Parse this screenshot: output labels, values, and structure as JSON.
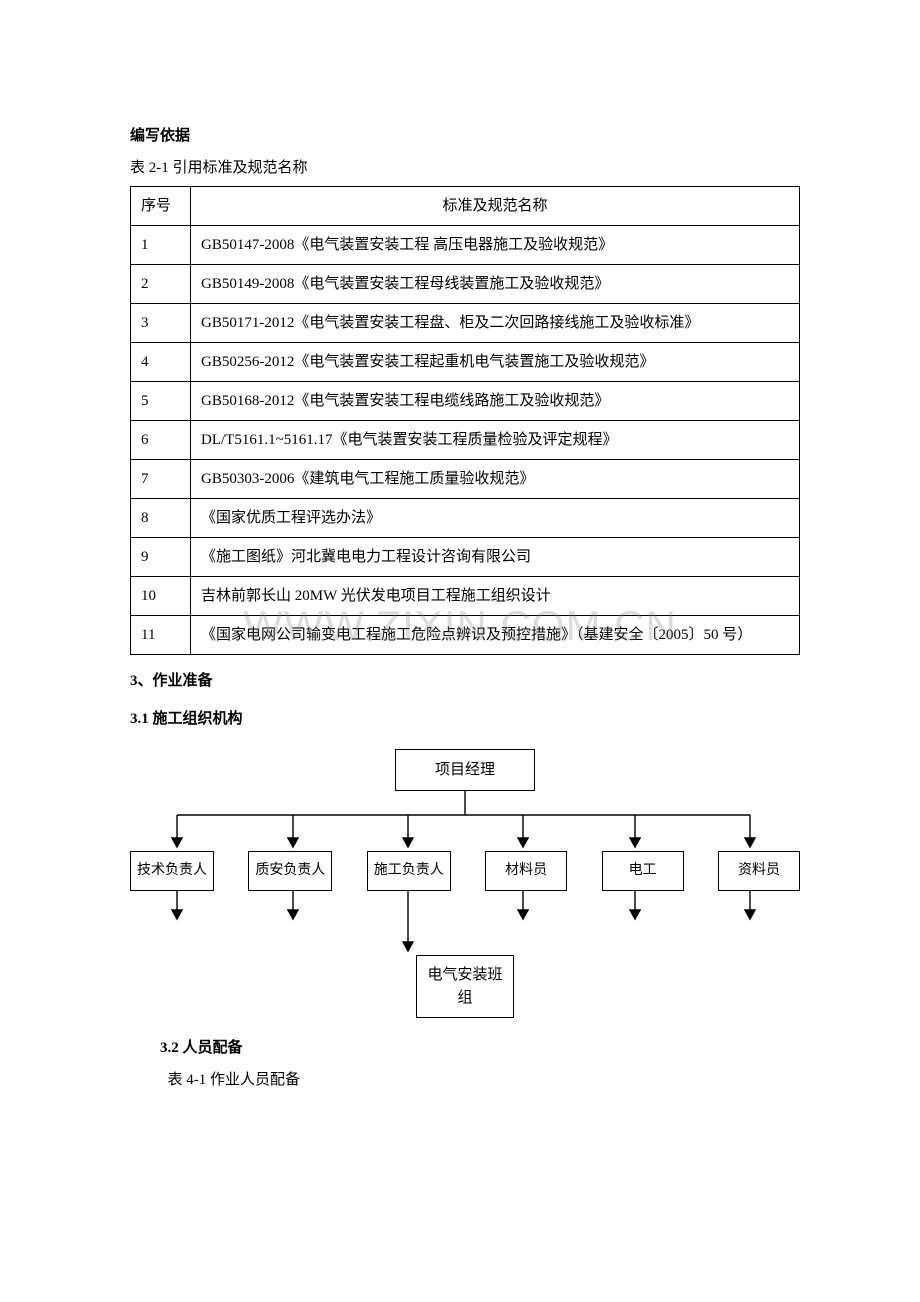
{
  "section_heading_basis": "编写依据",
  "table21_caption": "表 2-1 引用标准及规范名称",
  "table21": {
    "header_seq": "序号",
    "header_name": "标准及规范名称",
    "rows": [
      {
        "seq": "1",
        "name": "GB50147-2008《电气装置安装工程 高压电器施工及验收规范》"
      },
      {
        "seq": "2",
        "name": "GB50149-2008《电气装置安装工程母线装置施工及验收规范》"
      },
      {
        "seq": "3",
        "name": "GB50171-2012《电气装置安装工程盘、柜及二次回路接线施工及验收标准》"
      },
      {
        "seq": "4",
        "name": "GB50256-2012《电气装置安装工程起重机电气装置施工及验收规范》"
      },
      {
        "seq": "5",
        "name": "GB50168-2012《电气装置安装工程电缆线路施工及验收规范》"
      },
      {
        "seq": "6",
        "name": "DL/T5161.1~5161.17《电气装置安装工程质量检验及评定规程》"
      },
      {
        "seq": "7",
        "name": "GB50303-2006《建筑电气工程施工质量验收规范》"
      },
      {
        "seq": "8",
        "name": "《国家优质工程评选办法》"
      },
      {
        "seq": "9",
        "name": "《施工图纸》河北冀电电力工程设计咨询有限公司"
      },
      {
        "seq": "10",
        "name": "吉林前郭长山 20MW 光伏发电项目工程施工组织设计"
      },
      {
        "seq": "11",
        "name": "《国家电网公司输变电工程施工危险点辨识及预控措施》（基建安全〔2005〕50 号）"
      }
    ]
  },
  "section3_title": "3、作业准备",
  "section31_title": "3.1 施工组织机构",
  "org": {
    "top": "项目经理",
    "level2": [
      "技术负责人",
      "质安负责人",
      "施工负责人",
      "材料员",
      "电工",
      "资料员"
    ],
    "bottom": "电气安装班\n组",
    "node_border_color": "#000000",
    "node_bg": "#ffffff",
    "line_color": "#000000",
    "arrow_size": 7
  },
  "section32_title": "3.2 人员配备",
  "table41_caption": "表 4-1 作业人员配备",
  "watermark_text": "WWW.ZIXIN.COM.CN"
}
